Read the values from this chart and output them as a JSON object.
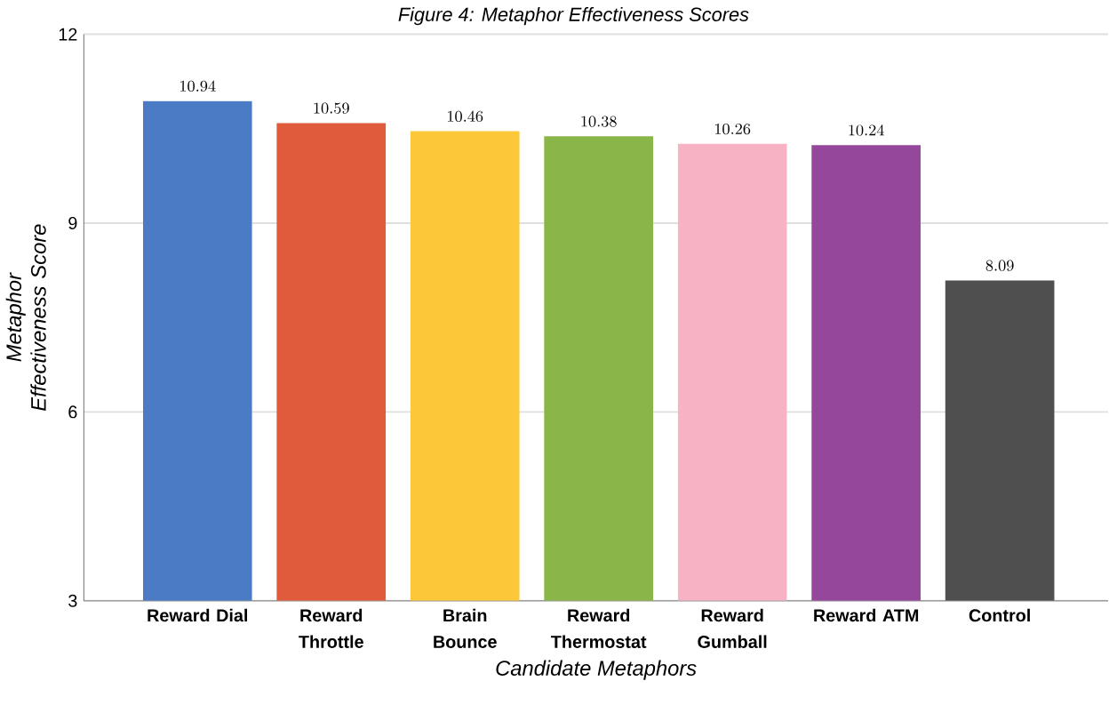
{
  "chart_data": {
    "type": "bar",
    "title": "Figure 4: Metaphor Effectiveness Scores",
    "xlabel": "Candidate Metaphors",
    "ylabel": "Metaphor Effectiveness Score",
    "categories": [
      "Reward Dial",
      "Reward Throttle",
      "Brain Bounce",
      "Reward Thermostat",
      "Reward Gumball",
      "Reward ATM",
      "Control"
    ],
    "values": [
      10.94,
      10.59,
      10.46,
      10.38,
      10.26,
      10.24,
      8.09
    ],
    "colors": [
      "#4a7bc4",
      "#e05a3c",
      "#fcc83a",
      "#8ab548",
      "#f7b3c4",
      "#95479c",
      "#4f4f4f"
    ],
    "ylim": [
      3,
      12
    ],
    "yticks": [
      3,
      6,
      9,
      12
    ],
    "grid": "y",
    "data_labels": true
  }
}
